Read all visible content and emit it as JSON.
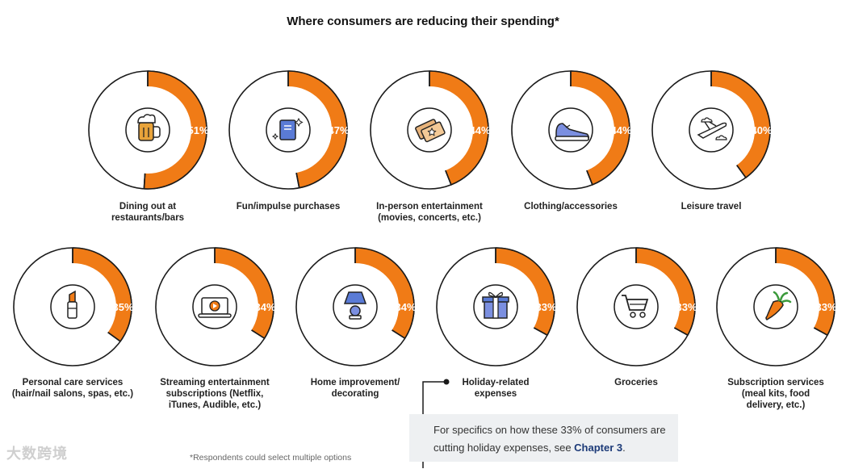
{
  "chart_data": {
    "type": "pie",
    "title": "Where consumers are reducing their spending*",
    "accent_color": "#f07b16",
    "items": [
      {
        "label": "Dining out at\nrestaurants/bars",
        "value": 51,
        "value_label": "51%",
        "icon": "beer-mug-icon"
      },
      {
        "label": "Fun/impulse purchases",
        "value": 47,
        "value_label": "47%",
        "icon": "book-icon"
      },
      {
        "label": "In-person entertainment\n(movies, concerts, etc.)",
        "value": 44,
        "value_label": "44%",
        "icon": "tickets-icon"
      },
      {
        "label": "Clothing/accessories",
        "value": 44,
        "value_label": "44%",
        "icon": "sneaker-icon"
      },
      {
        "label": "Leisure travel",
        "value": 40,
        "value_label": "40%",
        "icon": "airplane-icon"
      },
      {
        "label": "Personal care services\n(hair/nail salons, spas, etc.)",
        "value": 35,
        "value_label": "35%",
        "icon": "lipstick-icon"
      },
      {
        "label": "Streaming entertainment\nsubscriptions (Netflix,\niTunes, Audible, etc.)",
        "value": 34,
        "value_label": "34%",
        "icon": "laptop-play-icon"
      },
      {
        "label": "Home improvement/\ndecorating",
        "value": 34,
        "value_label": "34%",
        "icon": "lamp-icon"
      },
      {
        "label": "Holiday-related\nexpenses",
        "value": 33,
        "value_label": "33%",
        "icon": "gift-icon"
      },
      {
        "label": "Groceries",
        "value": 33,
        "value_label": "33%",
        "icon": "cart-icon"
      },
      {
        "label": "Subscription services\n(meal kits, food\ndelivery, etc.)",
        "value": 33,
        "value_label": "33%",
        "icon": "carrot-icon"
      }
    ]
  },
  "callout": {
    "text": "For specifics on how these 33% of consumers are cutting holiday expenses, see ",
    "link": "Chapter 3",
    "suffix": "."
  },
  "footnote": "*Respondents could select multiple options",
  "watermark": "大数跨境"
}
